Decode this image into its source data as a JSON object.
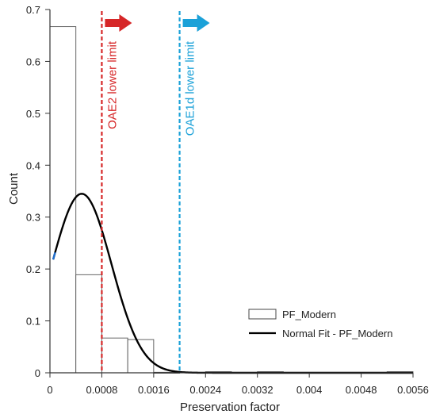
{
  "chart_data": {
    "type": "bar",
    "xlabel": "Preservation factor",
    "ylabel": "Count",
    "xlim": [
      0,
      0.0056
    ],
    "ylim": [
      0,
      0.7
    ],
    "xticks": [
      {
        "value": 0,
        "label": "0"
      },
      {
        "value": 0.0008,
        "label": "0.0008"
      },
      {
        "value": 0.0016,
        "label": "0.0016"
      },
      {
        "value": 0.0024,
        "label": "0.0024"
      },
      {
        "value": 0.0032,
        "label": "0.0032"
      },
      {
        "value": 0.004,
        "label": "0.004"
      },
      {
        "value": 0.0048,
        "label": "0.0048"
      },
      {
        "value": 0.0056,
        "label": "0.0056"
      }
    ],
    "yticks": [
      {
        "value": 0,
        "label": "0"
      },
      {
        "value": 0.1,
        "label": "0.1"
      },
      {
        "value": 0.2,
        "label": "0.2"
      },
      {
        "value": 0.3,
        "label": "0.3"
      },
      {
        "value": 0.4,
        "label": "0.4"
      },
      {
        "value": 0.5,
        "label": "0.5"
      },
      {
        "value": 0.6,
        "label": "0.6"
      },
      {
        "value": 0.7,
        "label": "0.7"
      }
    ],
    "histogram": {
      "name": "PF_Modern",
      "bin_width": 0.0004,
      "bins": [
        {
          "x0": 0,
          "value": 0.667
        },
        {
          "x0": 0.0004,
          "value": 0.189
        },
        {
          "x0": 0.0008,
          "value": 0.067
        },
        {
          "x0": 0.0012,
          "value": 0.064
        },
        {
          "x0": 0.0016,
          "value": 0.001
        },
        {
          "x0": 0.002,
          "value": 0
        },
        {
          "x0": 0.0024,
          "value": 0.002
        },
        {
          "x0": 0.0028,
          "value": 0
        },
        {
          "x0": 0.0032,
          "value": 0.002
        },
        {
          "x0": 0.0036,
          "value": 0
        },
        {
          "x0": 0.004,
          "value": 0
        },
        {
          "x0": 0.0044,
          "value": 0
        },
        {
          "x0": 0.0048,
          "value": 0
        },
        {
          "x0": 0.0052,
          "value": 0.002
        }
      ]
    },
    "normal_fit": {
      "name": "Normal Fit - PF_Modern",
      "mean": 0.00049,
      "std": 0.00046,
      "peak": 0.345,
      "x_start": 5e-05
    },
    "limits": [
      {
        "label": "OAE2 lower limit",
        "x": 0.0008,
        "color": "#d62728"
      },
      {
        "label": "OAE1d lower limit",
        "x": 0.002,
        "color": "#1ba1d8"
      }
    ],
    "legend_position": "lower-right",
    "grid": false
  }
}
